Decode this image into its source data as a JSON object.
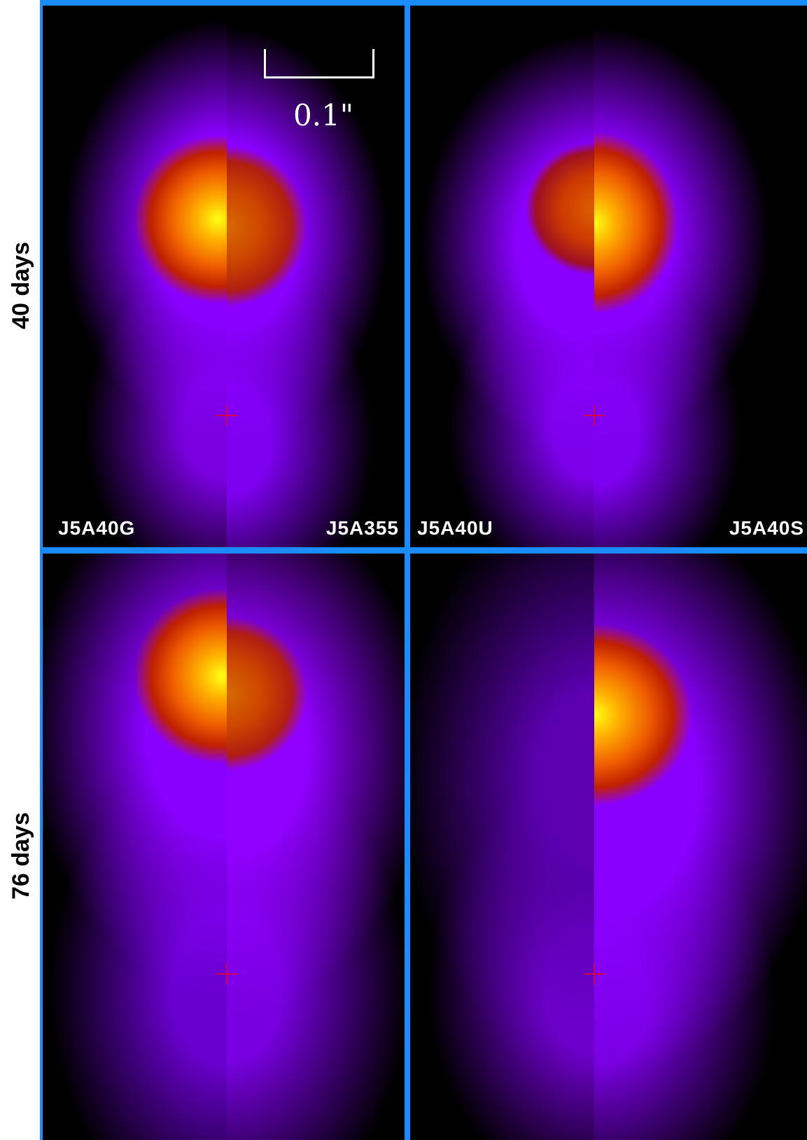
{
  "rows": [
    {
      "label": "40 days"
    },
    {
      "label": "76 days"
    }
  ],
  "panels": [
    {
      "left_label": "J5A40G",
      "right_label": "J5A355"
    },
    {
      "left_label": "J5A40U",
      "right_label": "J5A40S"
    },
    {
      "left_label": "",
      "right_label": ""
    },
    {
      "left_label": "",
      "right_label": ""
    }
  ],
  "scale_bar": {
    "label": "0.1\""
  },
  "colors": {
    "frame": "#1a8cff",
    "background": "#000000",
    "marker": "#d4004a"
  }
}
